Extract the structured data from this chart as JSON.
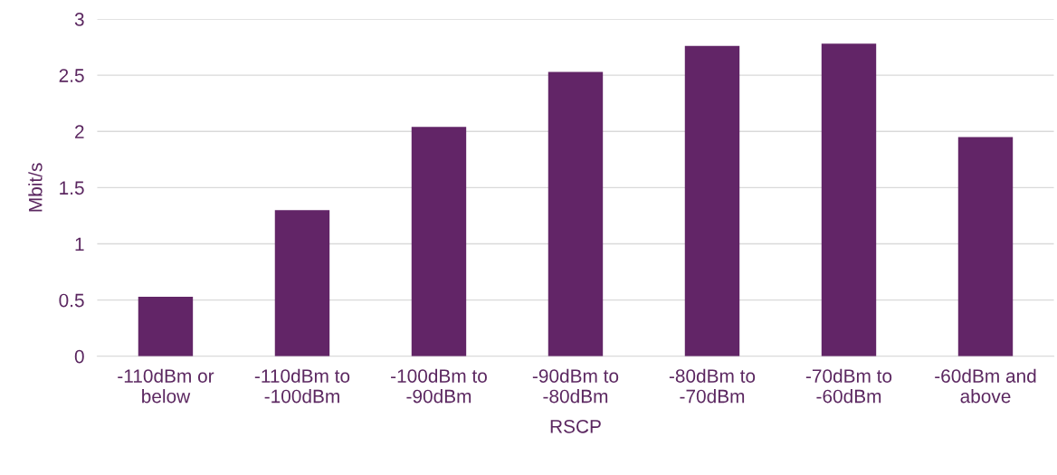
{
  "chart_data": {
    "type": "bar",
    "xlabel": "RSCP",
    "ylabel": "Mbit/s",
    "categories": [
      "-110dBm or\nbelow",
      "-110dBm to\n-100dBm",
      "-100dBm to\n-90dBm",
      "-90dBm to\n-80dBm",
      "-80dBm to\n-70dBm",
      "-70dBm to\n-60dBm",
      "-60dBm and\nabove"
    ],
    "values": [
      0.53,
      1.3,
      2.04,
      2.53,
      2.76,
      2.78,
      1.95
    ],
    "color": "#622567",
    "ylim": [
      0,
      3
    ],
    "yticks": [
      0,
      0.5,
      1,
      1.5,
      2,
      2.5,
      3
    ],
    "grid": "y"
  }
}
